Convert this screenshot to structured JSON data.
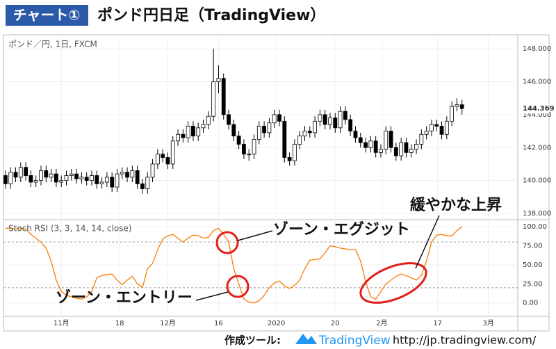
{
  "header": {
    "badge": "チャート①",
    "title": "ポンド円日足（TradingView）"
  },
  "chart_data": [
    {
      "type": "candlestick",
      "title": "ポンド／円, 1日, FXCM",
      "up_color": "#ffffff",
      "down_color": "#000000",
      "values": [
        [
          140.3,
          140.6,
          139.5,
          139.8
        ],
        [
          139.8,
          140.8,
          139.5,
          140.5
        ],
        [
          140.5,
          140.8,
          139.9,
          140.2
        ],
        [
          140.2,
          141.1,
          139.9,
          140.8
        ],
        [
          140.8,
          141.1,
          140.0,
          140.3
        ],
        [
          140.3,
          140.6,
          139.6,
          139.9
        ],
        [
          139.9,
          140.3,
          139.6,
          140.0
        ],
        [
          140.0,
          140.9,
          139.7,
          140.6
        ],
        [
          140.6,
          140.9,
          139.9,
          140.2
        ],
        [
          140.2,
          140.7,
          139.9,
          140.4
        ],
        [
          140.4,
          140.7,
          139.6,
          139.9
        ],
        [
          139.9,
          140.3,
          139.6,
          140.0
        ],
        [
          140.0,
          140.6,
          139.7,
          140.3
        ],
        [
          140.3,
          140.7,
          140.0,
          140.4
        ],
        [
          140.4,
          140.7,
          139.8,
          140.1
        ],
        [
          140.1,
          140.5,
          139.8,
          140.2
        ],
        [
          140.2,
          140.5,
          139.7,
          140.0
        ],
        [
          140.0,
          140.6,
          139.7,
          140.3
        ],
        [
          140.3,
          140.6,
          139.5,
          139.8
        ],
        [
          139.8,
          140.2,
          139.5,
          139.9
        ],
        [
          139.9,
          140.5,
          139.6,
          140.2
        ],
        [
          140.2,
          140.5,
          139.3,
          139.6
        ],
        [
          139.6,
          140.7,
          139.3,
          140.4
        ],
        [
          140.4,
          140.8,
          140.1,
          140.5
        ],
        [
          140.5,
          140.8,
          139.9,
          140.2
        ],
        [
          140.2,
          140.9,
          139.9,
          140.6
        ],
        [
          140.6,
          140.9,
          139.5,
          139.8
        ],
        [
          139.8,
          140.1,
          139.2,
          139.5
        ],
        [
          139.5,
          140.5,
          139.2,
          140.2
        ],
        [
          140.2,
          141.3,
          139.9,
          141.0
        ],
        [
          141.0,
          141.9,
          140.7,
          141.6
        ],
        [
          141.6,
          141.9,
          141.1,
          141.4
        ],
        [
          141.4,
          141.7,
          140.7,
          141.0
        ],
        [
          141.0,
          142.7,
          140.7,
          142.4
        ],
        [
          142.4,
          143.1,
          142.1,
          142.8
        ],
        [
          142.8,
          143.1,
          142.3,
          142.6
        ],
        [
          142.6,
          143.6,
          142.3,
          143.3
        ],
        [
          143.3,
          143.6,
          142.4,
          142.7
        ],
        [
          142.7,
          143.5,
          142.4,
          143.2
        ],
        [
          143.2,
          143.7,
          142.9,
          143.4
        ],
        [
          143.4,
          144.2,
          143.1,
          143.9
        ],
        [
          143.9,
          148.0,
          143.6,
          146.0
        ],
        [
          146.0,
          147.0,
          145.3,
          146.2
        ],
        [
          146.2,
          146.5,
          143.7,
          144.0
        ],
        [
          144.0,
          144.3,
          143.1,
          143.4
        ],
        [
          143.4,
          143.7,
          142.4,
          142.7
        ],
        [
          142.7,
          143.0,
          141.9,
          142.2
        ],
        [
          142.2,
          142.5,
          141.3,
          141.6
        ],
        [
          141.6,
          141.9,
          141.2,
          141.6
        ],
        [
          141.6,
          142.8,
          141.3,
          142.5
        ],
        [
          142.5,
          143.6,
          142.2,
          143.3
        ],
        [
          143.3,
          143.6,
          142.6,
          142.9
        ],
        [
          142.9,
          143.8,
          142.6,
          143.5
        ],
        [
          143.5,
          144.3,
          143.2,
          144.0
        ],
        [
          144.0,
          144.3,
          143.3,
          143.6
        ],
        [
          143.6,
          143.9,
          141.1,
          141.4
        ],
        [
          141.4,
          141.7,
          140.9,
          141.2
        ],
        [
          141.2,
          142.5,
          140.9,
          142.2
        ],
        [
          142.2,
          143.0,
          141.9,
          142.7
        ],
        [
          142.7,
          143.3,
          142.4,
          143.0
        ],
        [
          143.0,
          143.3,
          142.6,
          142.9
        ],
        [
          142.9,
          143.9,
          142.6,
          143.6
        ],
        [
          143.6,
          144.3,
          143.3,
          144.0
        ],
        [
          144.0,
          144.3,
          143.1,
          143.4
        ],
        [
          143.4,
          144.1,
          143.1,
          143.8
        ],
        [
          143.8,
          144.1,
          142.9,
          143.2
        ],
        [
          143.2,
          144.5,
          142.9,
          144.2
        ],
        [
          144.2,
          144.5,
          143.4,
          143.7
        ],
        [
          143.7,
          144.0,
          142.7,
          143.0
        ],
        [
          143.0,
          143.3,
          142.3,
          142.6
        ],
        [
          142.6,
          142.9,
          142.0,
          142.3
        ],
        [
          142.3,
          142.6,
          141.7,
          142.0
        ],
        [
          142.0,
          142.7,
          141.7,
          142.4
        ],
        [
          142.4,
          142.7,
          141.4,
          141.7
        ],
        [
          141.7,
          142.2,
          141.4,
          141.9
        ],
        [
          141.9,
          143.3,
          141.6,
          143.0
        ],
        [
          143.0,
          143.3,
          141.7,
          142.0
        ],
        [
          142.0,
          142.3,
          141.2,
          141.5
        ],
        [
          141.5,
          142.6,
          141.2,
          142.3
        ],
        [
          142.3,
          142.6,
          141.4,
          141.7
        ],
        [
          141.7,
          142.2,
          141.4,
          141.9
        ],
        [
          141.9,
          142.5,
          141.6,
          142.2
        ],
        [
          142.2,
          143.1,
          141.9,
          142.8
        ],
        [
          142.8,
          143.3,
          142.5,
          143.0
        ],
        [
          143.0,
          143.7,
          142.7,
          143.4
        ],
        [
          143.4,
          143.7,
          143.0,
          143.3
        ],
        [
          143.3,
          143.6,
          142.5,
          142.8
        ],
        [
          142.8,
          143.9,
          142.5,
          143.6
        ],
        [
          143.6,
          144.8,
          143.3,
          144.5
        ],
        [
          144.5,
          145.0,
          144.2,
          144.6
        ],
        [
          144.6,
          144.9,
          144.0,
          144.369
        ]
      ],
      "xlim": [
        -0.4,
        101
      ],
      "ylim": [
        137.62,
        148.85
      ],
      "yticks": [
        {
          "value": 138,
          "label": "138.000"
        },
        {
          "value": 140,
          "label": "140.000"
        },
        {
          "value": 142,
          "label": "142.000"
        },
        {
          "value": 144,
          "label": "144.000"
        },
        {
          "value": 146,
          "label": "146.000"
        },
        {
          "value": 148,
          "label": "148.000"
        }
      ],
      "grid": true
    },
    {
      "type": "line",
      "title": "Stoch RSI (3, 3, 14, 14, close)",
      "color": "#f57c00",
      "values": [
        98,
        98,
        97,
        98,
        97,
        90,
        85,
        80,
        72,
        55,
        30,
        15,
        10,
        8,
        6,
        5,
        8,
        15,
        33,
        36,
        37,
        38,
        30,
        24,
        30,
        35,
        25,
        20,
        45,
        52,
        70,
        84,
        88,
        90,
        85,
        80,
        85,
        89,
        88,
        85,
        86,
        95,
        98,
        90,
        80,
        45,
        25,
        5,
        1,
        0,
        3,
        10,
        20,
        26,
        29,
        22,
        19,
        23,
        30,
        45,
        56,
        57,
        58,
        66,
        75,
        74,
        72,
        71,
        70,
        70,
        55,
        28,
        8,
        5,
        15,
        25,
        30,
        35,
        38,
        36,
        33,
        30,
        36,
        55,
        80,
        89,
        90,
        88,
        88,
        95,
        100
      ],
      "xlim": [
        -0.4,
        101
      ],
      "ylim": [
        -17.6,
        109.3
      ],
      "yticks": [
        {
          "value": 0,
          "label": "0.00"
        },
        {
          "value": 25,
          "label": "25.00"
        },
        {
          "value": 50,
          "label": "50.00"
        },
        {
          "value": 75,
          "label": "75.00"
        },
        {
          "value": 100,
          "label": "100.00"
        }
      ],
      "bands": [
        80,
        20
      ],
      "xticks": [
        {
          "value": 11,
          "label": "11月"
        },
        {
          "value": 22.5,
          "label": "18"
        },
        {
          "value": 32,
          "label": "12月"
        },
        {
          "value": 42,
          "label": "16"
        },
        {
          "value": 53.4,
          "label": "2020"
        },
        {
          "value": 65,
          "label": "20"
        },
        {
          "value": 74.2,
          "label": "2月"
        },
        {
          "value": 85.2,
          "label": "17"
        },
        {
          "value": 95.2,
          "label": "3月"
        }
      ],
      "grid": true,
      "annotations": [
        "ゾーン・エグジット",
        "ゾーン・エントリー",
        "緩やかな上昇"
      ]
    }
  ],
  "footer": {
    "label": "作成ツール:",
    "brand": "TradingView",
    "url": "http://jp.tradingview.com/"
  }
}
